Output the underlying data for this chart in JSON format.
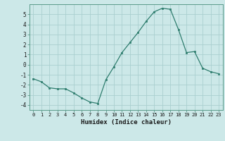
{
  "x": [
    0,
    1,
    2,
    3,
    4,
    5,
    6,
    7,
    8,
    9,
    10,
    11,
    12,
    13,
    14,
    15,
    16,
    17,
    18,
    19,
    20,
    21,
    22,
    23
  ],
  "y": [
    -1.4,
    -1.7,
    -2.3,
    -2.4,
    -2.4,
    -2.8,
    -3.3,
    -3.7,
    -3.85,
    -1.5,
    -0.2,
    1.2,
    2.2,
    3.2,
    4.3,
    5.25,
    5.6,
    5.5,
    3.5,
    1.2,
    1.3,
    -0.35,
    -0.7,
    -0.9
  ],
  "xlabel": "Humidex (Indice chaleur)",
  "xlim": [
    -0.5,
    23.5
  ],
  "ylim": [
    -4.5,
    6.0
  ],
  "line_color": "#2e7d6e",
  "marker_color": "#2e7d6e",
  "bg_color": "#cce8e8",
  "grid_color": "#aad0d0",
  "yticks": [
    -4,
    -3,
    -2,
    -1,
    0,
    1,
    2,
    3,
    4,
    5
  ],
  "xticks": [
    0,
    1,
    2,
    3,
    4,
    5,
    6,
    7,
    8,
    9,
    10,
    11,
    12,
    13,
    14,
    15,
    16,
    17,
    18,
    19,
    20,
    21,
    22,
    23
  ],
  "tick_fontsize": 5.0,
  "xlabel_fontsize": 6.5
}
